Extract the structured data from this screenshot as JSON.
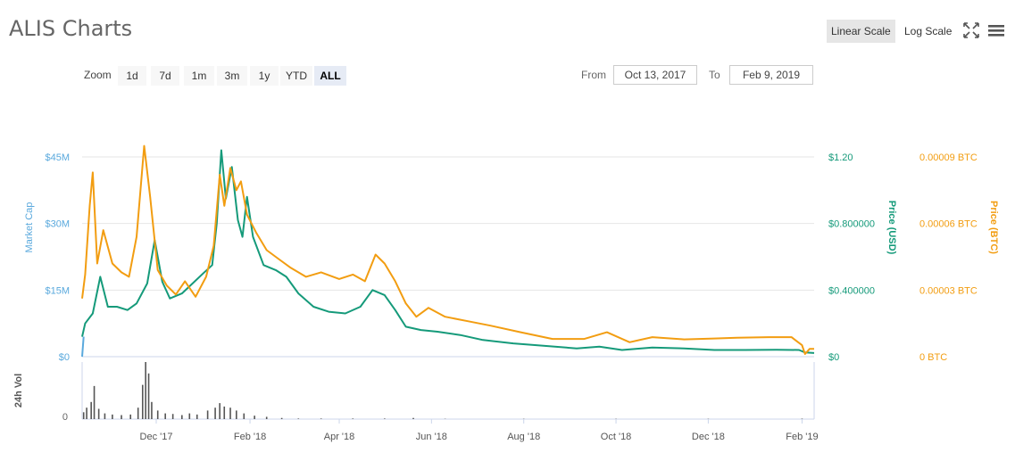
{
  "title": "ALIS Charts",
  "toolbar": {
    "linear_scale": "Linear Scale",
    "log_scale": "Log Scale",
    "fullscreen_icon": "fullscreen-icon",
    "menu_icon": "hamburger-menu-icon"
  },
  "zoom": {
    "label": "Zoom",
    "buttons": [
      "1d",
      "7d",
      "1m",
      "3m",
      "1y",
      "YTD",
      "ALL"
    ],
    "active": "ALL"
  },
  "range": {
    "from_label": "From",
    "from_value": "Oct 13, 2017",
    "to_label": "To",
    "to_value": "Feb 9, 2019"
  },
  "colors": {
    "market_cap": "#5aa9dd",
    "price_usd": "#159a7a",
    "price_btc": "#f29d11",
    "volume": "#555555"
  },
  "chart_data": {
    "type": "line",
    "x_labels": [
      "Dec '17",
      "Feb '18",
      "Apr '18",
      "Jun '18",
      "Aug '18",
      "Oct '18",
      "Dec '18",
      "Feb '19"
    ],
    "x_range": [
      "2017-10-13",
      "2019-02-09"
    ],
    "axes": {
      "market_cap": {
        "label": "Market Cap",
        "ticks": [
          "$0",
          "$15M",
          "$30M",
          "$45M"
        ],
        "range": [
          0,
          45000000
        ]
      },
      "price_usd": {
        "label": "Price (USD)",
        "ticks": [
          "$0",
          "$0.400000",
          "$0.800000",
          "$1.20"
        ],
        "range": [
          0,
          1.2
        ]
      },
      "price_btc": {
        "label": "Price (BTC)",
        "ticks": [
          "0 BTC",
          "0.00003 BTC",
          "0.00006 BTC",
          "0.00009 BTC"
        ],
        "range": [
          0,
          9e-05
        ]
      },
      "volume": {
        "label": "24h Vol",
        "ticks": [
          "0"
        ]
      }
    },
    "series": [
      {
        "name": "Price (USD)",
        "axis": "price_usd",
        "points": [
          [
            "2017-10-13",
            0.12
          ],
          [
            "2017-10-15",
            0.2
          ],
          [
            "2017-10-20",
            0.26
          ],
          [
            "2017-10-25",
            0.48
          ],
          [
            "2017-10-30",
            0.3
          ],
          [
            "2017-11-05",
            0.3
          ],
          [
            "2017-11-12",
            0.28
          ],
          [
            "2017-11-18",
            0.32
          ],
          [
            "2017-11-25",
            0.44
          ],
          [
            "2017-11-30",
            0.7
          ],
          [
            "2017-12-05",
            0.45
          ],
          [
            "2017-12-10",
            0.35
          ],
          [
            "2017-12-18",
            0.38
          ],
          [
            "2017-12-25",
            0.44
          ],
          [
            "2018-01-01",
            0.5
          ],
          [
            "2018-01-07",
            0.55
          ],
          [
            "2018-01-10",
            0.8
          ],
          [
            "2018-01-13",
            1.24
          ],
          [
            "2018-01-16",
            0.95
          ],
          [
            "2018-01-20",
            1.14
          ],
          [
            "2018-01-24",
            0.82
          ],
          [
            "2018-01-27",
            0.72
          ],
          [
            "2018-01-30",
            0.96
          ],
          [
            "2018-02-03",
            0.72
          ],
          [
            "2018-02-10",
            0.55
          ],
          [
            "2018-02-18",
            0.52
          ],
          [
            "2018-02-25",
            0.48
          ],
          [
            "2018-03-05",
            0.38
          ],
          [
            "2018-03-15",
            0.3
          ],
          [
            "2018-03-25",
            0.27
          ],
          [
            "2018-04-05",
            0.26
          ],
          [
            "2018-04-15",
            0.3
          ],
          [
            "2018-04-23",
            0.4
          ],
          [
            "2018-05-01",
            0.37
          ],
          [
            "2018-05-08",
            0.28
          ],
          [
            "2018-05-15",
            0.18
          ],
          [
            "2018-05-25",
            0.16
          ],
          [
            "2018-06-05",
            0.15
          ],
          [
            "2018-06-20",
            0.13
          ],
          [
            "2018-07-05",
            0.1
          ],
          [
            "2018-07-25",
            0.08
          ],
          [
            "2018-08-15",
            0.065
          ],
          [
            "2018-09-05",
            0.05
          ],
          [
            "2018-09-20",
            0.06
          ],
          [
            "2018-10-05",
            0.04
          ],
          [
            "2018-10-25",
            0.055
          ],
          [
            "2018-11-15",
            0.05
          ],
          [
            "2018-12-05",
            0.04
          ],
          [
            "2018-12-25",
            0.04
          ],
          [
            "2019-01-15",
            0.042
          ],
          [
            "2019-01-30",
            0.04
          ],
          [
            "2019-02-03",
            0.025
          ],
          [
            "2019-02-09",
            0.022
          ]
        ]
      },
      {
        "name": "Price (BTC)",
        "axis": "price_btc",
        "points": [
          [
            "2017-10-13",
            2.62e-05
          ],
          [
            "2017-10-15",
            3.7e-05
          ],
          [
            "2017-10-18",
            6.8e-05
          ],
          [
            "2017-10-20",
            8.3e-05
          ],
          [
            "2017-10-23",
            4.2e-05
          ],
          [
            "2017-10-27",
            5.7e-05
          ],
          [
            "2017-11-02",
            4.2e-05
          ],
          [
            "2017-11-08",
            3.8e-05
          ],
          [
            "2017-11-13",
            3.6e-05
          ],
          [
            "2017-11-18",
            5.4e-05
          ],
          [
            "2017-11-23",
            9.5e-05
          ],
          [
            "2017-11-27",
            7.2e-05
          ],
          [
            "2017-12-02",
            3.9e-05
          ],
          [
            "2017-12-08",
            3.2e-05
          ],
          [
            "2017-12-14",
            2.8e-05
          ],
          [
            "2017-12-20",
            3.4e-05
          ],
          [
            "2017-12-27",
            2.7e-05
          ],
          [
            "2018-01-03",
            3.6e-05
          ],
          [
            "2018-01-08",
            5e-05
          ],
          [
            "2018-01-12",
            8.2e-05
          ],
          [
            "2018-01-15",
            6.8e-05
          ],
          [
            "2018-01-19",
            8.5e-05
          ],
          [
            "2018-01-23",
            7.5e-05
          ],
          [
            "2018-01-26",
            7.9e-05
          ],
          [
            "2018-01-30",
            6.4e-05
          ],
          [
            "2018-02-05",
            5.6e-05
          ],
          [
            "2018-02-12",
            4.8e-05
          ],
          [
            "2018-02-20",
            4.4e-05
          ],
          [
            "2018-02-28",
            4e-05
          ],
          [
            "2018-03-10",
            3.6e-05
          ],
          [
            "2018-03-20",
            3.8e-05
          ],
          [
            "2018-04-01",
            3.5e-05
          ],
          [
            "2018-04-10",
            3.7e-05
          ],
          [
            "2018-04-18",
            3.4e-05
          ],
          [
            "2018-04-25",
            4.6e-05
          ],
          [
            "2018-05-01",
            4.2e-05
          ],
          [
            "2018-05-08",
            3.4e-05
          ],
          [
            "2018-05-15",
            2.4e-05
          ],
          [
            "2018-05-22",
            1.8e-05
          ],
          [
            "2018-05-30",
            2.2e-05
          ],
          [
            "2018-06-10",
            1.8e-05
          ],
          [
            "2018-06-25",
            1.6e-05
          ],
          [
            "2018-07-10",
            1.4e-05
          ],
          [
            "2018-07-30",
            1.1e-05
          ],
          [
            "2018-08-20",
            8e-06
          ],
          [
            "2018-09-10",
            8e-06
          ],
          [
            "2018-09-25",
            1.1e-05
          ],
          [
            "2018-10-10",
            6.5e-06
          ],
          [
            "2018-10-25",
            8.8e-06
          ],
          [
            "2018-11-15",
            7.8e-06
          ],
          [
            "2018-12-05",
            8.2e-06
          ],
          [
            "2018-12-20",
            8.5e-06
          ],
          [
            "2019-01-10",
            8.8e-06
          ],
          [
            "2019-01-25",
            8.8e-06
          ],
          [
            "2019-02-01",
            5.2e-06
          ],
          [
            "2019-02-03",
            1.2e-06
          ],
          [
            "2019-02-06",
            3.5e-06
          ],
          [
            "2019-02-09",
            3.5e-06
          ]
        ]
      },
      {
        "name": "Market Cap",
        "axis": "market_cap",
        "points": [
          [
            "2017-10-13",
            0
          ],
          [
            "2017-10-14",
            4500000
          ]
        ]
      }
    ],
    "volume": [
      [
        "2017-10-14",
        0.12
      ],
      [
        "2017-10-16",
        0.2
      ],
      [
        "2017-10-19",
        0.3
      ],
      [
        "2017-10-21",
        0.58
      ],
      [
        "2017-10-24",
        0.18
      ],
      [
        "2017-10-28",
        0.1
      ],
      [
        "2017-11-02",
        0.08
      ],
      [
        "2017-11-08",
        0.07
      ],
      [
        "2017-11-14",
        0.08
      ],
      [
        "2017-11-19",
        0.2
      ],
      [
        "2017-11-22",
        0.6
      ],
      [
        "2017-11-24",
        1.0
      ],
      [
        "2017-11-26",
        0.8
      ],
      [
        "2017-11-28",
        0.3
      ],
      [
        "2017-12-02",
        0.15
      ],
      [
        "2017-12-07",
        0.1
      ],
      [
        "2017-12-12",
        0.09
      ],
      [
        "2017-12-18",
        0.07
      ],
      [
        "2017-12-23",
        0.1
      ],
      [
        "2017-12-28",
        0.08
      ],
      [
        "2018-01-04",
        0.15
      ],
      [
        "2018-01-09",
        0.2
      ],
      [
        "2018-01-12",
        0.28
      ],
      [
        "2018-01-15",
        0.22
      ],
      [
        "2018-01-19",
        0.2
      ],
      [
        "2018-01-23",
        0.15
      ],
      [
        "2018-01-28",
        0.1
      ],
      [
        "2018-02-04",
        0.06
      ],
      [
        "2018-02-12",
        0.04
      ],
      [
        "2018-02-22",
        0.02
      ],
      [
        "2018-03-05",
        0.01
      ],
      [
        "2018-03-20",
        0.01
      ],
      [
        "2018-04-10",
        0.01
      ],
      [
        "2018-05-01",
        0.01
      ],
      [
        "2018-05-20",
        0.02
      ],
      [
        "2018-06-10",
        0.005
      ],
      [
        "2018-08-01",
        0.005
      ],
      [
        "2018-10-01",
        0.005
      ],
      [
        "2018-12-01",
        0.005
      ],
      [
        "2019-02-01",
        0.008
      ]
    ]
  }
}
